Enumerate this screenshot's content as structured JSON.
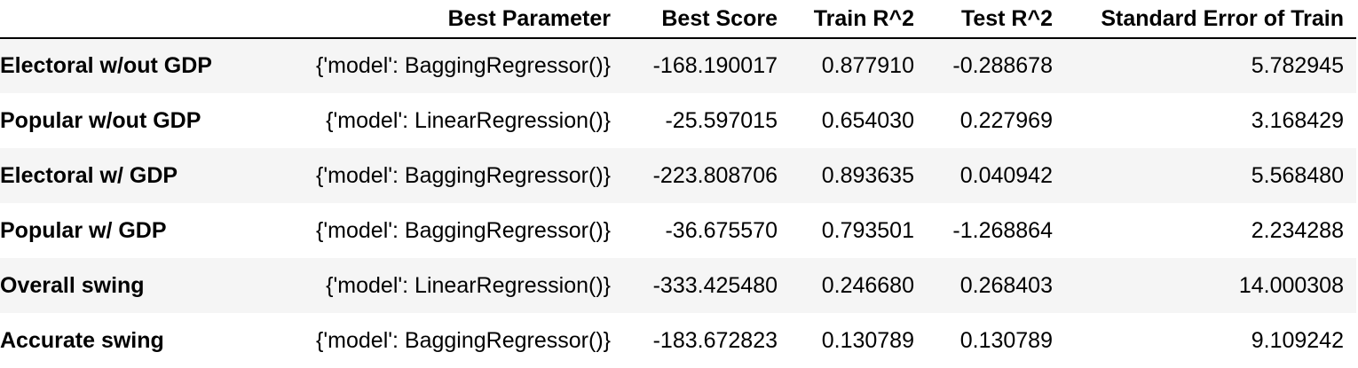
{
  "table": {
    "columns": [
      "",
      "Best Parameter",
      "Best Score",
      "Train R^2",
      "Test R^2",
      "Standard Error of Train"
    ],
    "rows": [
      {
        "index": "Electoral w/out GDP",
        "best_parameter": "{'model': BaggingRegressor()}",
        "best_score": "-168.190017",
        "train_r2": "0.877910",
        "test_r2": "-0.288678",
        "se_train": "5.782945"
      },
      {
        "index": "Popular w/out GDP",
        "best_parameter": "{'model': LinearRegression()}",
        "best_score": "-25.597015",
        "train_r2": "0.654030",
        "test_r2": "0.227969",
        "se_train": "3.168429"
      },
      {
        "index": "Electoral w/ GDP",
        "best_parameter": "{'model': BaggingRegressor()}",
        "best_score": "-223.808706",
        "train_r2": "0.893635",
        "test_r2": "0.040942",
        "se_train": "5.568480"
      },
      {
        "index": "Popular w/ GDP",
        "best_parameter": "{'model': BaggingRegressor()}",
        "best_score": "-36.675570",
        "train_r2": "0.793501",
        "test_r2": "-1.268864",
        "se_train": "2.234288"
      },
      {
        "index": "Overall swing",
        "best_parameter": "{'model': LinearRegression()}",
        "best_score": "-333.425480",
        "train_r2": "0.246680",
        "test_r2": "0.268403",
        "se_train": "14.000308"
      },
      {
        "index": "Accurate swing",
        "best_parameter": "{'model': BaggingRegressor()}",
        "best_score": "-183.672823",
        "train_r2": "0.130789",
        "test_r2": "0.130789",
        "se_train": "9.109242"
      }
    ]
  },
  "colors": {
    "stripe": "#f5f5f5",
    "background": "#ffffff",
    "text": "#000000"
  }
}
